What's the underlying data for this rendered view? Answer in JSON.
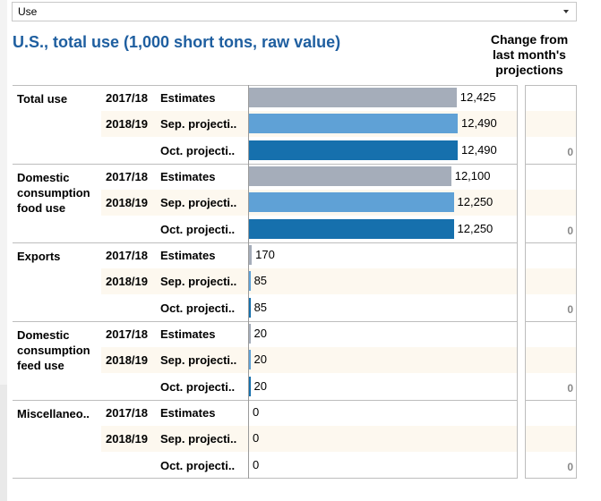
{
  "dropdown": {
    "value": "Use"
  },
  "title": "U.S., total use (1,000 short tons, raw value)",
  "change_header": [
    "Change from",
    "last month's",
    "projections"
  ],
  "colors": {
    "estimates": "#a5adba",
    "sep": "#5fa1d6",
    "oct": "#1670ad",
    "title": "#1f5fa0"
  },
  "chart_data": {
    "type": "bar",
    "orientation": "horizontal",
    "title": "U.S., total use (1,000 short tons, raw value)",
    "xlim": [
      0,
      12490
    ],
    "series_labels": [
      "2017/18 Estimates",
      "2018/19 Sep. projecti..",
      "Oct. projecti.."
    ],
    "groups": [
      {
        "category": "Total use",
        "rows": [
          {
            "year": "2017/18",
            "label": "Estimates",
            "value": 12425,
            "display": "12,425",
            "kind": "estimates"
          },
          {
            "year": "2018/19",
            "label": "Sep. projecti..",
            "value": 12490,
            "display": "12,490",
            "kind": "sep"
          },
          {
            "year": "",
            "label": "Oct. projecti..",
            "value": 12490,
            "display": "12,490",
            "kind": "oct"
          }
        ],
        "change": "0"
      },
      {
        "category": "Domestic consumption food use",
        "category_lines": [
          "Domestic",
          "consumption",
          "food use"
        ],
        "rows": [
          {
            "year": "2017/18",
            "label": "Estimates",
            "value": 12100,
            "display": "12,100",
            "kind": "estimates"
          },
          {
            "year": "2018/19",
            "label": "Sep. projecti..",
            "value": 12250,
            "display": "12,250",
            "kind": "sep"
          },
          {
            "year": "",
            "label": "Oct. projecti..",
            "value": 12250,
            "display": "12,250",
            "kind": "oct"
          }
        ],
        "change": "0"
      },
      {
        "category": "Exports",
        "rows": [
          {
            "year": "2017/18",
            "label": "Estimates",
            "value": 170,
            "display": "170",
            "kind": "estimates"
          },
          {
            "year": "2018/19",
            "label": "Sep. projecti..",
            "value": 85,
            "display": "85",
            "kind": "sep"
          },
          {
            "year": "",
            "label": "Oct. projecti..",
            "value": 85,
            "display": "85",
            "kind": "oct"
          }
        ],
        "change": "0"
      },
      {
        "category": "Domestic consumption feed use",
        "category_lines": [
          "Domestic",
          "consumption",
          "feed use"
        ],
        "rows": [
          {
            "year": "2017/18",
            "label": "Estimates",
            "value": 20,
            "display": "20",
            "kind": "estimates"
          },
          {
            "year": "2018/19",
            "label": "Sep. projecti..",
            "value": 20,
            "display": "20",
            "kind": "sep"
          },
          {
            "year": "",
            "label": "Oct. projecti..",
            "value": 20,
            "display": "20",
            "kind": "oct"
          }
        ],
        "change": "0"
      },
      {
        "category": "Miscellaneo..",
        "rows": [
          {
            "year": "2017/18",
            "label": "Estimates",
            "value": 0,
            "display": "0",
            "kind": "estimates"
          },
          {
            "year": "2018/19",
            "label": "Sep. projecti..",
            "value": 0,
            "display": "0",
            "kind": "sep"
          },
          {
            "year": "",
            "label": "Oct. projecti..",
            "value": 0,
            "display": "0",
            "kind": "oct"
          }
        ],
        "change": "0"
      }
    ]
  }
}
